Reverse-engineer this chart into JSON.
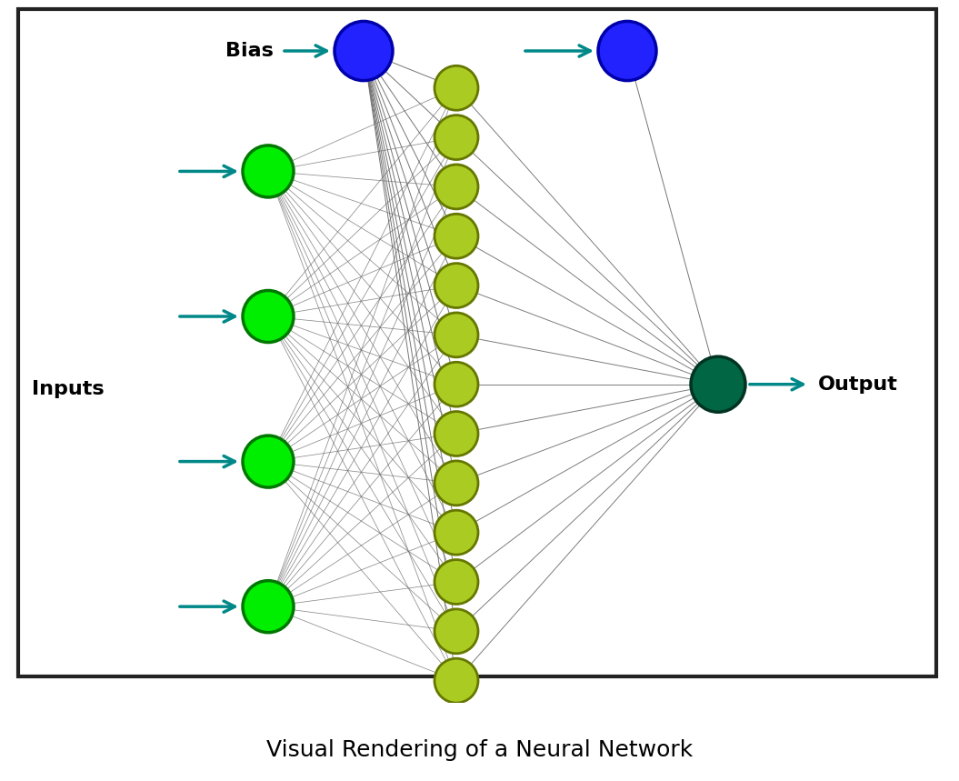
{
  "title": "Visual Rendering of a Neural Network",
  "bias_label": "Bias",
  "inputs_label": "Inputs",
  "output_label": "Output",
  "input_color": "#00ee00",
  "input_edge_color": "#007700",
  "bias_color": "#2222ff",
  "bias_edge_color": "#0000aa",
  "hidden_color": "#aacc22",
  "hidden_edge_color": "#667700",
  "output_color": "#006644",
  "output_edge_color": "#003322",
  "arrow_color": "#008888",
  "connection_color": "#666666",
  "background_color": "#ffffff",
  "border_color": "#222222",
  "n_inputs": 4,
  "n_hidden": 13,
  "figsize": [
    10.55,
    8.59
  ],
  "dpi": 100,
  "title_fontsize": 18,
  "label_fontsize": 16,
  "bias_fontsize": 16
}
